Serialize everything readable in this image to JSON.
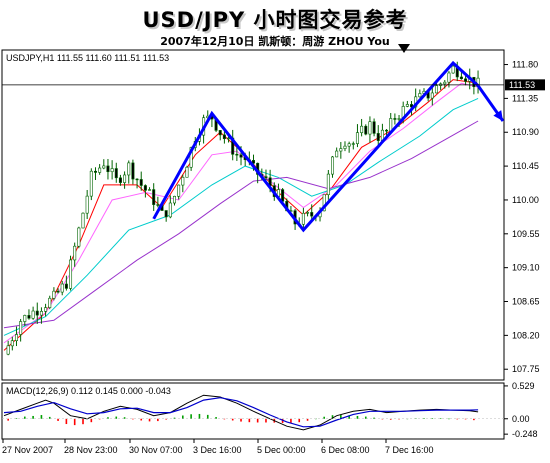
{
  "header": {
    "title": "USD/JPY 小时图交易参考",
    "subtitle": "2007年12月10日  凯斯顿：周游 ZHOU You"
  },
  "chart_data": [
    {
      "type": "candlestick",
      "symbol_label": "USDJPY,H1  111.55 111.60 111.51 111.53",
      "current_price_label": "111.53",
      "current_price": 111.53,
      "ylim": [
        107.62,
        111.98
      ],
      "y_ticks": [
        "111.80",
        "111.35",
        "110.90",
        "110.45",
        "110.00",
        "109.55",
        "109.10",
        "108.65",
        "108.20",
        "107.75"
      ],
      "x_ticks": [
        "27 Nov 2007",
        "28 Nov 23:00",
        "30 Nov 07:00",
        "3 Dec 16:00",
        "5 Dec 00:00",
        "6 Dec 08:00",
        "7 Dec 16:00"
      ],
      "price_path": [
        [
          0,
          107.95
        ],
        [
          4,
          108.4
        ],
        [
          8,
          108.55
        ],
        [
          12,
          108.7
        ],
        [
          15,
          108.9
        ],
        [
          18,
          109.6
        ],
        [
          21,
          110.3
        ],
        [
          24,
          110.5
        ],
        [
          27,
          110.25
        ],
        [
          30,
          110.45
        ],
        [
          33,
          110.2
        ],
        [
          36,
          110.0
        ],
        [
          38,
          109.8
        ],
        [
          40,
          109.9
        ],
        [
          42,
          110.2
        ],
        [
          44,
          110.5
        ],
        [
          46,
          110.85
        ],
        [
          48,
          111.05
        ],
        [
          50,
          111.1
        ],
        [
          52,
          110.9
        ],
        [
          54,
          110.75
        ],
        [
          56,
          110.6
        ],
        [
          58,
          110.55
        ],
        [
          60,
          110.4
        ],
        [
          62,
          110.3
        ],
        [
          64,
          110.2
        ],
        [
          66,
          110.05
        ],
        [
          68,
          109.85
        ],
        [
          70,
          109.7
        ],
        [
          72,
          109.75
        ],
        [
          74,
          109.8
        ],
        [
          76,
          109.9
        ],
        [
          78,
          110.3
        ],
        [
          80,
          110.7
        ],
        [
          82,
          110.8
        ],
        [
          84,
          110.75
        ],
        [
          86,
          110.9
        ],
        [
          88,
          111.0
        ],
        [
          90,
          110.85
        ],
        [
          92,
          110.9
        ],
        [
          94,
          111.1
        ],
        [
          96,
          111.2
        ],
        [
          98,
          111.3
        ],
        [
          100,
          111.35
        ],
        [
          102,
          111.4
        ],
        [
          104,
          111.5
        ],
        [
          106,
          111.6
        ],
        [
          108,
          111.75
        ],
        [
          110,
          111.7
        ],
        [
          112,
          111.6
        ],
        [
          114,
          111.53
        ]
      ],
      "ma_lines": [
        {
          "color": "#ff0000",
          "values": [
            [
              0,
              108.0
            ],
            [
              10,
              108.5
            ],
            [
              18,
              109.4
            ],
            [
              24,
              110.2
            ],
            [
              32,
              110.2
            ],
            [
              38,
              109.9
            ],
            [
              46,
              110.6
            ],
            [
              52,
              110.9
            ],
            [
              58,
              110.6
            ],
            [
              66,
              110.1
            ],
            [
              72,
              109.8
            ],
            [
              78,
              110.1
            ],
            [
              86,
              110.7
            ],
            [
              94,
              110.95
            ],
            [
              102,
              111.3
            ],
            [
              108,
              111.6
            ],
            [
              114,
              111.55
            ]
          ]
        },
        {
          "color": "#ff66ff",
          "values": [
            [
              0,
              108.1
            ],
            [
              10,
              108.5
            ],
            [
              18,
              109.2
            ],
            [
              26,
              110.0
            ],
            [
              34,
              110.1
            ],
            [
              42,
              110.0
            ],
            [
              50,
              110.6
            ],
            [
              56,
              110.65
            ],
            [
              64,
              110.25
            ],
            [
              72,
              109.9
            ],
            [
              80,
              110.2
            ],
            [
              88,
              110.65
            ],
            [
              96,
              110.95
            ],
            [
              104,
              111.3
            ],
            [
              110,
              111.55
            ],
            [
              114,
              111.5
            ]
          ]
        },
        {
          "color": "#00cccc",
          "values": [
            [
              0,
              108.2
            ],
            [
              10,
              108.45
            ],
            [
              20,
              109.0
            ],
            [
              30,
              109.6
            ],
            [
              40,
              109.8
            ],
            [
              50,
              110.2
            ],
            [
              58,
              110.45
            ],
            [
              66,
              110.3
            ],
            [
              74,
              110.05
            ],
            [
              82,
              110.2
            ],
            [
              90,
              110.5
            ],
            [
              100,
              110.85
            ],
            [
              108,
              111.2
            ],
            [
              114,
              111.35
            ]
          ]
        },
        {
          "color": "#9933cc",
          "values": [
            [
              0,
              108.3
            ],
            [
              12,
              108.4
            ],
            [
              22,
              108.8
            ],
            [
              32,
              109.2
            ],
            [
              42,
              109.55
            ],
            [
              52,
              109.95
            ],
            [
              60,
              110.25
            ],
            [
              68,
              110.3
            ],
            [
              78,
              110.15
            ],
            [
              88,
              110.3
            ],
            [
              98,
              110.55
            ],
            [
              106,
              110.8
            ],
            [
              114,
              111.05
            ]
          ]
        }
      ],
      "pattern_line": {
        "color": "#0000ff",
        "points": [
          [
            36,
            109.75
          ],
          [
            50,
            111.15
          ],
          [
            72,
            109.6
          ],
          [
            108,
            111.82
          ],
          [
            114,
            111.52
          ]
        ]
      },
      "forecast_arrow": {
        "color": "#0000ff",
        "from": [
          114,
          111.52
        ],
        "to": [
          120,
          111.05
        ]
      }
    },
    {
      "type": "line",
      "label": "MACD(12,26,9) 0.112 0.145 0.000 -0.043",
      "ylim": [
        -0.31,
        0.56
      ],
      "y_ticks": [
        "0.529",
        "0.00",
        "-0.248"
      ],
      "zero_line": 0.0,
      "main": [
        [
          0,
          0.05
        ],
        [
          4,
          0.15
        ],
        [
          8,
          0.25
        ],
        [
          10,
          0.3
        ],
        [
          12,
          0.25
        ],
        [
          16,
          0.05
        ],
        [
          20,
          0.0
        ],
        [
          24,
          0.12
        ],
        [
          28,
          0.2
        ],
        [
          32,
          0.15
        ],
        [
          36,
          0.05
        ],
        [
          40,
          0.1
        ],
        [
          44,
          0.25
        ],
        [
          48,
          0.38
        ],
        [
          52,
          0.35
        ],
        [
          56,
          0.25
        ],
        [
          60,
          0.12
        ],
        [
          64,
          0.0
        ],
        [
          68,
          -0.12
        ],
        [
          72,
          -0.18
        ],
        [
          76,
          -0.1
        ],
        [
          80,
          0.05
        ],
        [
          84,
          0.12
        ],
        [
          88,
          0.15
        ],
        [
          92,
          0.1
        ],
        [
          96,
          0.12
        ],
        [
          100,
          0.14
        ],
        [
          104,
          0.15
        ],
        [
          108,
          0.14
        ],
        [
          112,
          0.13
        ],
        [
          114,
          0.11
        ]
      ],
      "signal": [
        [
          0,
          0.1
        ],
        [
          4,
          0.12
        ],
        [
          8,
          0.2
        ],
        [
          12,
          0.26
        ],
        [
          16,
          0.16
        ],
        [
          20,
          0.08
        ],
        [
          24,
          0.1
        ],
        [
          28,
          0.16
        ],
        [
          32,
          0.17
        ],
        [
          36,
          0.1
        ],
        [
          40,
          0.1
        ],
        [
          44,
          0.18
        ],
        [
          48,
          0.3
        ],
        [
          52,
          0.34
        ],
        [
          56,
          0.29
        ],
        [
          60,
          0.18
        ],
        [
          64,
          0.06
        ],
        [
          68,
          -0.05
        ],
        [
          72,
          -0.13
        ],
        [
          76,
          -0.12
        ],
        [
          80,
          -0.02
        ],
        [
          84,
          0.07
        ],
        [
          88,
          0.12
        ],
        [
          92,
          0.12
        ],
        [
          96,
          0.12
        ],
        [
          100,
          0.13
        ],
        [
          104,
          0.14
        ],
        [
          108,
          0.14
        ],
        [
          112,
          0.14
        ],
        [
          114,
          0.145
        ]
      ]
    }
  ]
}
